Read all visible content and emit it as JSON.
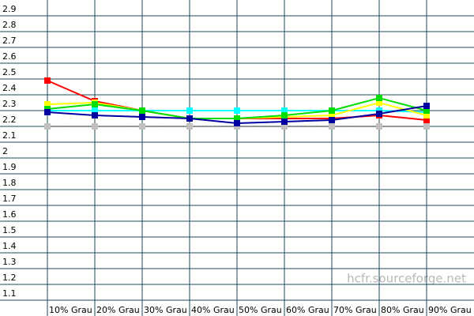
{
  "chart_data": {
    "type": "line",
    "watermark": "hcfr.sourceforge.net",
    "categories": [
      "10% Grau",
      "20% Grau",
      "30% Grau",
      "40% Grau",
      "50% Grau",
      "60% Grau",
      "70% Grau",
      "80% Grau",
      "90% Grau"
    ],
    "ylim": [
      1.0,
      3.0
    ],
    "yticks": [
      1.1,
      1.2,
      1.3,
      1.4,
      1.5,
      1.6,
      1.7,
      1.8,
      1.9,
      2,
      2.1,
      2.2,
      2.3,
      2.4,
      2.5,
      2.6,
      2.7,
      2.8,
      2.9
    ],
    "grid": true,
    "series": [
      {
        "color": "#c0c0c0",
        "dashed": true,
        "values": [
          2.2,
          2.2,
          2.2,
          2.2,
          2.2,
          2.2,
          2.2,
          2.2,
          2.2
        ]
      },
      {
        "color": "#00ffff",
        "values": [
          2.3,
          2.3,
          2.3,
          2.3,
          2.3,
          2.3,
          2.3,
          2.3,
          2.29
        ]
      },
      {
        "color": "#ff0000",
        "values": [
          2.49,
          2.36,
          2.3,
          2.25,
          2.25,
          2.25,
          2.25,
          2.27,
          2.24
        ]
      },
      {
        "color": "#ffff00",
        "values": [
          2.34,
          2.35,
          2.3,
          2.25,
          2.25,
          2.26,
          2.27,
          2.35,
          2.27
        ]
      },
      {
        "color": "#00dd00",
        "values": [
          2.31,
          2.34,
          2.3,
          2.25,
          2.25,
          2.27,
          2.3,
          2.38,
          2.3
        ]
      },
      {
        "color": "#0000a0",
        "values": [
          2.29,
          2.27,
          2.26,
          2.25,
          2.22,
          2.23,
          2.24,
          2.28,
          2.33
        ]
      }
    ]
  }
}
